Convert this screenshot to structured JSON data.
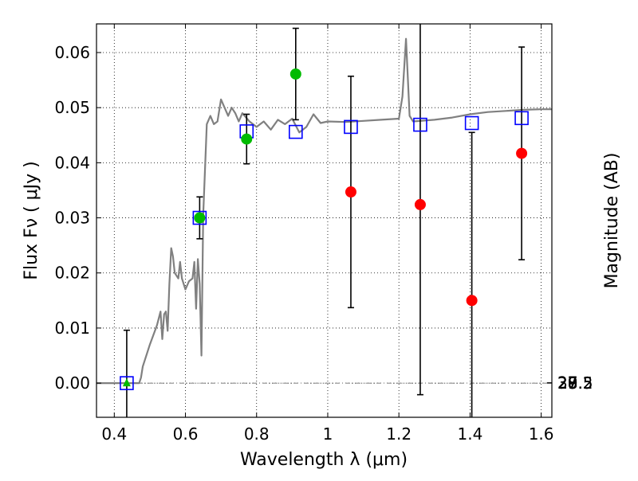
{
  "chart_data": {
    "type": "scatter",
    "xlabel": "Wavelength  λ (μm)",
    "ylabel": "Flux  Fν  ( μJy )",
    "ylabel_right": "Magnitude (AB)",
    "xlim": [
      0.35,
      1.63
    ],
    "ylim": [
      -0.0062,
      0.0652
    ],
    "grid": true,
    "x_ticks": [
      {
        "value": 0.4,
        "label": "0.4"
      },
      {
        "value": 0.6,
        "label": "0.6"
      },
      {
        "value": 0.8,
        "label": "0.8"
      },
      {
        "value": 1.0,
        "label": "1"
      },
      {
        "value": 1.2,
        "label": "1.2"
      },
      {
        "value": 1.4,
        "label": "1.4"
      },
      {
        "value": 1.6,
        "label": "1.6"
      }
    ],
    "y_ticks": [
      {
        "value": 0.0,
        "label": "0.00"
      },
      {
        "value": 0.01,
        "label": "0.01"
      },
      {
        "value": 0.02,
        "label": "0.02"
      },
      {
        "value": 0.03,
        "label": "0.03"
      },
      {
        "value": 0.04,
        "label": "0.04"
      },
      {
        "value": 0.05,
        "label": "0.05"
      },
      {
        "value": 0.06,
        "label": "0.06"
      }
    ],
    "mag_ticks": [
      {
        "mag": 27,
        "label": "27"
      },
      {
        "mag": 27.2,
        "label": "27.2"
      },
      {
        "mag": 27.5,
        "label": "27.5"
      },
      {
        "mag": 28,
        "label": "28"
      },
      {
        "mag": 28.5,
        "label": "28.5"
      },
      {
        "mag": 29,
        "label": "29"
      },
      {
        "mag": 30,
        "label": "30"
      }
    ],
    "series": [
      {
        "marker": "line",
        "color": "#808080",
        "x": [
          0.35,
          0.47,
          0.475,
          0.48,
          0.5,
          0.52,
          0.53,
          0.535,
          0.54,
          0.545,
          0.55,
          0.555,
          0.56,
          0.565,
          0.57,
          0.58,
          0.585,
          0.59,
          0.6,
          0.61,
          0.62,
          0.625,
          0.63,
          0.635,
          0.64,
          0.645,
          0.65,
          0.66,
          0.67,
          0.68,
          0.69,
          0.7,
          0.71,
          0.72,
          0.73,
          0.74,
          0.75,
          0.76,
          0.78,
          0.8,
          0.82,
          0.84,
          0.86,
          0.88,
          0.9,
          0.92,
          0.94,
          0.96,
          0.98,
          1.0,
          1.05,
          1.1,
          1.15,
          1.2,
          1.21,
          1.22,
          1.23,
          1.24,
          1.3,
          1.35,
          1.4,
          1.45,
          1.5,
          1.55,
          1.6,
          1.63
        ],
        "y": [
          0.0,
          0.0,
          0.001,
          0.003,
          0.007,
          0.0105,
          0.013,
          0.008,
          0.0125,
          0.013,
          0.0095,
          0.018,
          0.0245,
          0.023,
          0.02,
          0.019,
          0.022,
          0.019,
          0.017,
          0.0185,
          0.019,
          0.022,
          0.0135,
          0.0225,
          0.018,
          0.005,
          0.0305,
          0.047,
          0.0485,
          0.047,
          0.0475,
          0.0515,
          0.05,
          0.0485,
          0.05,
          0.049,
          0.0475,
          0.049,
          0.0475,
          0.0465,
          0.0475,
          0.046,
          0.0478,
          0.047,
          0.048,
          0.0455,
          0.0465,
          0.0488,
          0.0472,
          0.0475,
          0.0474,
          0.0476,
          0.0478,
          0.048,
          0.052,
          0.0625,
          0.0485,
          0.0475,
          0.0478,
          0.0482,
          0.0488,
          0.0492,
          0.0494,
          0.0496,
          0.0497,
          0.0497
        ]
      },
      {
        "marker": "open-square",
        "color": "#0000ff",
        "x": [
          0.435,
          0.64,
          0.772,
          0.91,
          1.065,
          1.26,
          1.405,
          1.545
        ],
        "y": [
          0.0,
          0.03,
          0.0457,
          0.0456,
          0.0465,
          0.0469,
          0.0472,
          0.0481
        ]
      },
      {
        "marker": "filled-circle",
        "color": "#00bb00",
        "x": [
          0.64,
          0.772,
          0.91
        ],
        "y": [
          0.03,
          0.0443,
          0.0561
        ],
        "yerr": [
          0.0038,
          0.0045,
          0.0083
        ]
      },
      {
        "marker": "filled-circle",
        "color": "#ff0000",
        "x": [
          1.065,
          1.26,
          1.405,
          1.545
        ],
        "y": [
          0.0347,
          0.0324,
          0.015,
          0.0417
        ],
        "yerr": [
          0.021,
          0.0345,
          0.0305,
          0.0193
        ]
      },
      {
        "marker": "triangle",
        "color": "#00bb00",
        "x": [
          0.435
        ],
        "y": [
          0.0
        ],
        "yerr": [
          0.0096
        ]
      }
    ]
  }
}
